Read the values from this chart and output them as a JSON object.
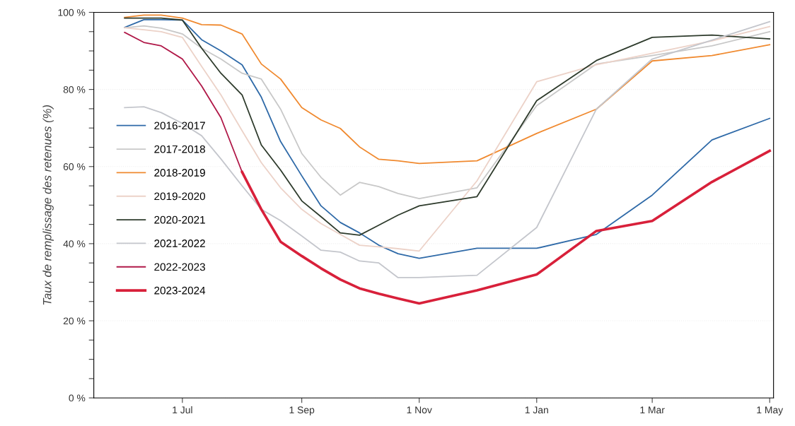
{
  "chart_data": {
    "type": "line",
    "ylabel": "Taux de remplissage des retenues (%)",
    "x": [
      "2023-06-01",
      "2023-06-11",
      "2023-06-20",
      "2023-07-01",
      "2023-07-11",
      "2023-07-21",
      "2023-08-01",
      "2023-08-11",
      "2023-08-21",
      "2023-09-01",
      "2023-09-11",
      "2023-09-21",
      "2023-10-01",
      "2023-10-11",
      "2023-10-21",
      "2023-11-01",
      "2023-12-01",
      "2024-01-01",
      "2024-02-01",
      "2024-03-01",
      "2024-04-01",
      "2024-05-01"
    ],
    "xlim": [
      "2023-05-16",
      "2024-05-03"
    ],
    "xticks": [
      {
        "value": "2023-07-01",
        "label": "1 Jul"
      },
      {
        "value": "2023-09-01",
        "label": "1 Sep"
      },
      {
        "value": "2023-11-01",
        "label": "1 Nov"
      },
      {
        "value": "2024-01-01",
        "label": "1 Jan"
      },
      {
        "value": "2024-03-01",
        "label": "1 Mar"
      },
      {
        "value": "2024-05-01",
        "label": "1 May"
      }
    ],
    "ylim": [
      0,
      100
    ],
    "yticks": [
      {
        "value": 0,
        "label": "0 %"
      },
      {
        "value": 5,
        "label": null
      },
      {
        "value": 10,
        "label": null
      },
      {
        "value": 15,
        "label": null
      },
      {
        "value": 20,
        "label": "20 %"
      },
      {
        "value": 25,
        "label": null
      },
      {
        "value": 30,
        "label": null
      },
      {
        "value": 35,
        "label": null
      },
      {
        "value": 40,
        "label": "40 %"
      },
      {
        "value": 45,
        "label": null
      },
      {
        "value": 50,
        "label": null
      },
      {
        "value": 55,
        "label": null
      },
      {
        "value": 60,
        "label": "60 %"
      },
      {
        "value": 65,
        "label": null
      },
      {
        "value": 70,
        "label": null
      },
      {
        "value": 75,
        "label": null
      },
      {
        "value": 80,
        "label": "80 %"
      },
      {
        "value": 85,
        "label": null
      },
      {
        "value": 90,
        "label": null
      },
      {
        "value": 95,
        "label": null
      },
      {
        "value": 100,
        "label": "100 %"
      }
    ],
    "grid": "y",
    "legend": "center left",
    "marker": "none",
    "line_style": "solid",
    "series": [
      {
        "name": "2016-2017",
        "color": "#2f6aa8",
        "values": [
          96.1,
          98.1,
          98.1,
          98,
          92.9,
          90,
          86.4,
          78,
          66.5,
          57.6,
          49.8,
          45.5,
          42.8,
          39.6,
          37.4,
          36.2,
          38.8,
          38.8,
          42.4,
          52.6,
          66.9,
          72.5
        ]
      },
      {
        "name": "2017-2018",
        "color": "#c8c8c8",
        "values": [
          96,
          96.5,
          95.9,
          94.4,
          90.7,
          87.9,
          84.2,
          82.7,
          74.9,
          63.4,
          57.2,
          52.6,
          55.9,
          54.8,
          53,
          51.7,
          54.5,
          75.8,
          86.6,
          88.8,
          91.3,
          95
        ]
      },
      {
        "name": "2018-2019",
        "color": "#f08a30",
        "values": [
          98.7,
          99.3,
          99.3,
          98.5,
          96.8,
          96.7,
          94.4,
          86.6,
          82.7,
          75.3,
          72.1,
          69.9,
          65.1,
          61.9,
          61.5,
          60.8,
          61.5,
          68.6,
          74.9,
          87.4,
          88.8,
          91.6
        ]
      },
      {
        "name": "2019-2020",
        "color": "#ecd2c8",
        "values": [
          96,
          95.5,
          95,
          93.5,
          86,
          78.6,
          69.3,
          61,
          54.5,
          48.9,
          45.2,
          42.4,
          39.6,
          39.2,
          38.7,
          38.1,
          56.3,
          82,
          86.4,
          89.4,
          92.6,
          96.3
        ]
      },
      {
        "name": "2020-2021",
        "color": "#2e3b2c",
        "values": [
          98.5,
          98.5,
          98.5,
          98,
          90.7,
          84.2,
          78.6,
          65.6,
          59.1,
          51.1,
          47,
          42.8,
          42.2,
          44.8,
          47.4,
          49.8,
          52.2,
          77.1,
          87.5,
          93.5,
          94.1,
          93.1
        ]
      },
      {
        "name": "2021-2022",
        "color": "#c4c6cc",
        "values": [
          75.3,
          75.5,
          74,
          71.2,
          68,
          62,
          55,
          48.9,
          46,
          42,
          38.3,
          37.8,
          35.5,
          35,
          31.2,
          31.2,
          31.8,
          44.2,
          74.9,
          87.9,
          92.8,
          97.6
        ]
      },
      {
        "name": "2022-2023",
        "color": "#b01848",
        "values": [
          94.8,
          92.2,
          91.3,
          87.9,
          80.9,
          72.7,
          58.6,
          null,
          null,
          null,
          null,
          null,
          null,
          null,
          null,
          null,
          null,
          null,
          null,
          null,
          null,
          null
        ]
      },
      {
        "name": "2023-2024",
        "color": "#d8203a",
        "values": [
          null,
          null,
          null,
          null,
          null,
          null,
          58.6,
          48.9,
          40.5,
          36.8,
          33.6,
          30.7,
          28.4,
          27,
          25.8,
          24.5,
          27.9,
          32,
          43.3,
          45.9,
          56,
          64.1
        ]
      }
    ]
  }
}
